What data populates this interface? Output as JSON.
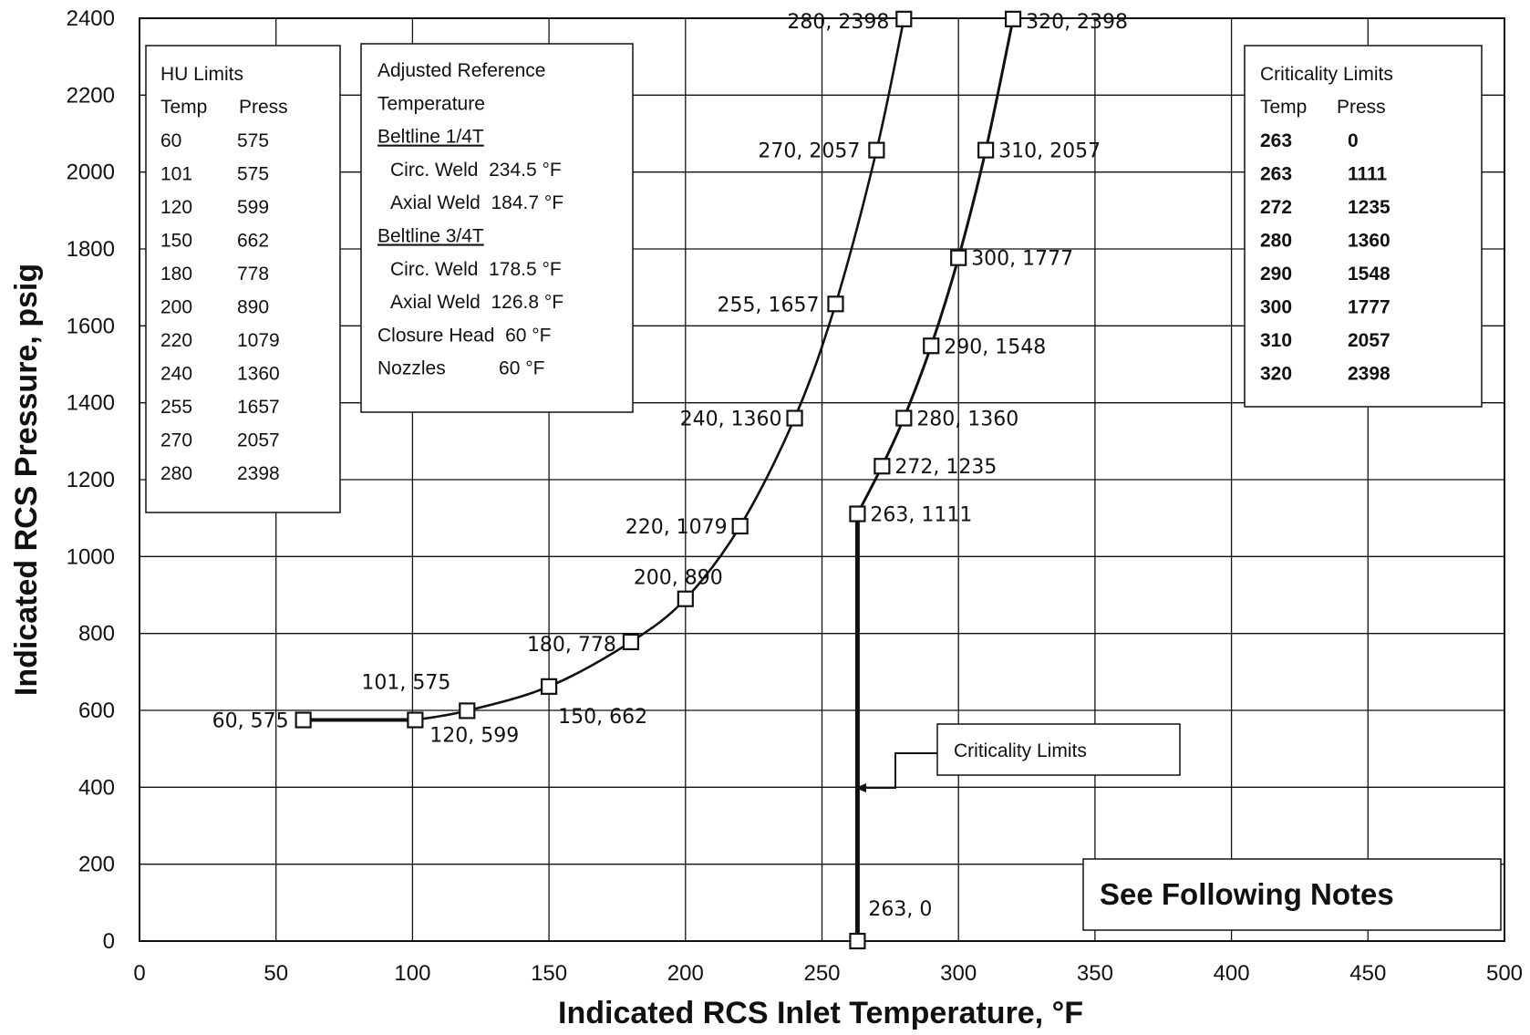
{
  "chart_data": {
    "type": "line",
    "xlabel": "Indicated RCS Inlet Temperature, °F",
    "ylabel": "Indicated RCS Pressure, psig",
    "xlim": [
      0,
      500
    ],
    "ylim": [
      0,
      2400
    ],
    "x_ticks": [
      0,
      50,
      100,
      150,
      200,
      250,
      300,
      350,
      400,
      450,
      500
    ],
    "y_ticks": [
      0,
      200,
      400,
      600,
      800,
      1000,
      1200,
      1400,
      1600,
      1800,
      2000,
      2200,
      2400
    ],
    "grid": true,
    "series": [
      {
        "name": "HU Limits",
        "points": [
          {
            "x": 60,
            "y": 575,
            "label": "60, 575"
          },
          {
            "x": 101,
            "y": 575,
            "label": "101, 575"
          },
          {
            "x": 120,
            "y": 599,
            "label": "120, 599"
          },
          {
            "x": 150,
            "y": 662,
            "label": "150, 662"
          },
          {
            "x": 180,
            "y": 778,
            "label": "180, 778"
          },
          {
            "x": 200,
            "y": 890,
            "label": "200, 890"
          },
          {
            "x": 220,
            "y": 1079,
            "label": "220, 1079"
          },
          {
            "x": 240,
            "y": 1360,
            "label": "240, 1360"
          },
          {
            "x": 255,
            "y": 1657,
            "label": "255, 1657"
          },
          {
            "x": 270,
            "y": 2057,
            "label": "270, 2057"
          },
          {
            "x": 280,
            "y": 2398,
            "label": "280, 2398"
          }
        ]
      },
      {
        "name": "Criticality Limits",
        "points": [
          {
            "x": 263,
            "y": 0,
            "label": "263, 0"
          },
          {
            "x": 263,
            "y": 1111,
            "label": "263, 1111"
          },
          {
            "x": 272,
            "y": 1235,
            "label": "272, 1235"
          },
          {
            "x": 280,
            "y": 1360,
            "label": "280, 1360"
          },
          {
            "x": 290,
            "y": 1548,
            "label": "290, 1548"
          },
          {
            "x": 300,
            "y": 1777,
            "label": "300, 1777"
          },
          {
            "x": 310,
            "y": 2057,
            "label": "310, 2057"
          },
          {
            "x": 320,
            "y": 2398,
            "label": "320, 2398"
          }
        ]
      }
    ],
    "hu_table": {
      "title": "HU Limits",
      "headers": [
        "Temp",
        "Press"
      ],
      "rows": [
        [
          "60",
          "575"
        ],
        [
          "101",
          "575"
        ],
        [
          "120",
          "599"
        ],
        [
          "150",
          "662"
        ],
        [
          "180",
          "778"
        ],
        [
          "200",
          "890"
        ],
        [
          "220",
          "1079"
        ],
        [
          "240",
          "1360"
        ],
        [
          "255",
          "1657"
        ],
        [
          "270",
          "2057"
        ],
        [
          "280",
          "2398"
        ]
      ]
    },
    "reference_box": {
      "lines": [
        {
          "text": "Adjusted Reference",
          "underline": false,
          "indent": false
        },
        {
          "text": "Temperature",
          "underline": false,
          "indent": false
        },
        {
          "text": "Beltline 1/4T",
          "underline": true,
          "indent": false
        },
        {
          "text": "Circ. Weld  234.5 °F",
          "underline": false,
          "indent": true
        },
        {
          "text": "Axial Weld  184.7 °F",
          "underline": false,
          "indent": true
        },
        {
          "text": "Beltline 3/4T",
          "underline": true,
          "indent": false
        },
        {
          "text": "Circ. Weld  178.5 °F",
          "underline": false,
          "indent": true
        },
        {
          "text": "Axial Weld  126.8 °F",
          "underline": false,
          "indent": true
        },
        {
          "text": "Closure Head  60 °F",
          "underline": false,
          "indent": false
        },
        {
          "text": "Nozzles          60 °F",
          "underline": false,
          "indent": false
        }
      ]
    },
    "criticality_table": {
      "title": "Criticality Limits",
      "headers": [
        "Temp",
        "Press"
      ],
      "rows": [
        [
          "263",
          "0"
        ],
        [
          "263",
          "1111"
        ],
        [
          "272",
          "1235"
        ],
        [
          "280",
          "1360"
        ],
        [
          "290",
          "1548"
        ],
        [
          "300",
          "1777"
        ],
        [
          "310",
          "2057"
        ],
        [
          "320",
          "2398"
        ]
      ]
    },
    "annotation": "Criticality Limits",
    "note": "See Following Notes"
  }
}
